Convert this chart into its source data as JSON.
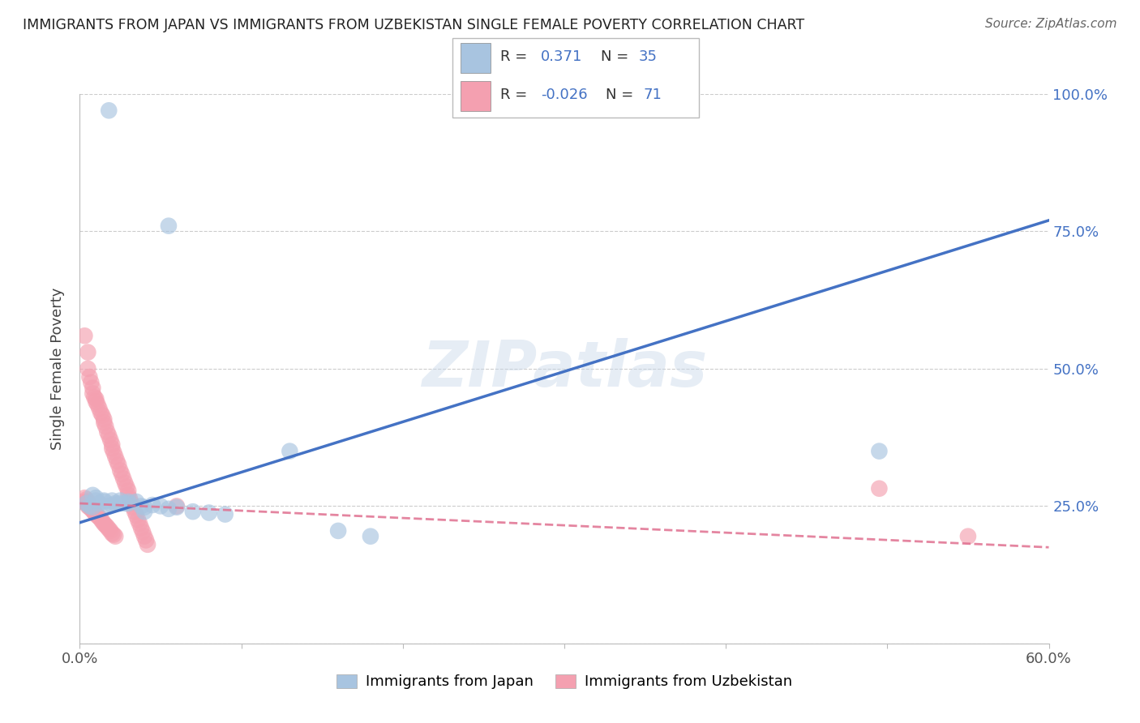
{
  "title": "IMMIGRANTS FROM JAPAN VS IMMIGRANTS FROM UZBEKISTAN SINGLE FEMALE POVERTY CORRELATION CHART",
  "source": "Source: ZipAtlas.com",
  "ylabel": "Single Female Poverty",
  "xlim": [
    0.0,
    0.6
  ],
  "ylim": [
    0.0,
    1.0
  ],
  "xtick_pos": [
    0.0,
    0.1,
    0.2,
    0.3,
    0.4,
    0.5,
    0.6
  ],
  "xticklabels": [
    "0.0%",
    "",
    "",
    "",
    "",
    "",
    "60.0%"
  ],
  "ytick_pos": [
    0.0,
    0.25,
    0.5,
    0.75,
    1.0
  ],
  "yticklabels_right": [
    "",
    "25.0%",
    "50.0%",
    "75.0%",
    "100.0%"
  ],
  "japan_R": 0.371,
  "japan_N": 35,
  "uzbekistan_R": -0.026,
  "uzbekistan_N": 71,
  "japan_color": "#a8c4e0",
  "uzbekistan_color": "#f4a0b0",
  "japan_line_color": "#4472c4",
  "uzbekistan_line_color": "#e07090",
  "watermark": "ZIPatlas",
  "japan_line_x0": 0.0,
  "japan_line_y0": 0.22,
  "japan_line_x1": 0.6,
  "japan_line_y1": 0.77,
  "uzbek_line_x0": 0.0,
  "uzbek_line_y0": 0.255,
  "uzbek_line_x1": 0.6,
  "uzbek_line_y1": 0.175,
  "japan_x": [
    0.018,
    0.055,
    0.004,
    0.006,
    0.008,
    0.01,
    0.012,
    0.015,
    0.018,
    0.02,
    0.022,
    0.025,
    0.028,
    0.03,
    0.035,
    0.038,
    0.04,
    0.045,
    0.05,
    0.055,
    0.06,
    0.07,
    0.08,
    0.09,
    0.01,
    0.015,
    0.02,
    0.025,
    0.03,
    0.04,
    0.16,
    0.18,
    0.13,
    0.495,
    0.008
  ],
  "japan_y": [
    0.97,
    0.76,
    0.255,
    0.25,
    0.248,
    0.26,
    0.255,
    0.258,
    0.25,
    0.252,
    0.255,
    0.26,
    0.255,
    0.255,
    0.258,
    0.25,
    0.248,
    0.252,
    0.25,
    0.245,
    0.248,
    0.24,
    0.238,
    0.235,
    0.265,
    0.26,
    0.26,
    0.255,
    0.258,
    0.24,
    0.205,
    0.195,
    0.35,
    0.35,
    0.27
  ],
  "uzbek_x": [
    0.003,
    0.005,
    0.005,
    0.006,
    0.007,
    0.008,
    0.008,
    0.009,
    0.01,
    0.01,
    0.011,
    0.012,
    0.013,
    0.014,
    0.015,
    0.015,
    0.016,
    0.017,
    0.018,
    0.019,
    0.02,
    0.02,
    0.021,
    0.022,
    0.023,
    0.024,
    0.025,
    0.026,
    0.027,
    0.028,
    0.029,
    0.03,
    0.03,
    0.031,
    0.032,
    0.033,
    0.034,
    0.035,
    0.036,
    0.037,
    0.038,
    0.039,
    0.04,
    0.041,
    0.042,
    0.003,
    0.004,
    0.005,
    0.006,
    0.007,
    0.008,
    0.009,
    0.01,
    0.011,
    0.012,
    0.013,
    0.014,
    0.015,
    0.016,
    0.017,
    0.018,
    0.019,
    0.02,
    0.021,
    0.022,
    0.003,
    0.004,
    0.005,
    0.495,
    0.55,
    0.06
  ],
  "uzbek_y": [
    0.56,
    0.53,
    0.5,
    0.485,
    0.475,
    0.465,
    0.455,
    0.448,
    0.445,
    0.44,
    0.435,
    0.428,
    0.42,
    0.415,
    0.408,
    0.402,
    0.395,
    0.385,
    0.378,
    0.37,
    0.362,
    0.355,
    0.348,
    0.34,
    0.332,
    0.325,
    0.315,
    0.308,
    0.3,
    0.292,
    0.285,
    0.278,
    0.27,
    0.263,
    0.255,
    0.248,
    0.24,
    0.233,
    0.225,
    0.218,
    0.21,
    0.203,
    0.195,
    0.188,
    0.18,
    0.258,
    0.255,
    0.25,
    0.248,
    0.245,
    0.242,
    0.238,
    0.235,
    0.232,
    0.23,
    0.226,
    0.222,
    0.218,
    0.215,
    0.212,
    0.208,
    0.205,
    0.2,
    0.198,
    0.195,
    0.265,
    0.262,
    0.258,
    0.282,
    0.195,
    0.25
  ]
}
